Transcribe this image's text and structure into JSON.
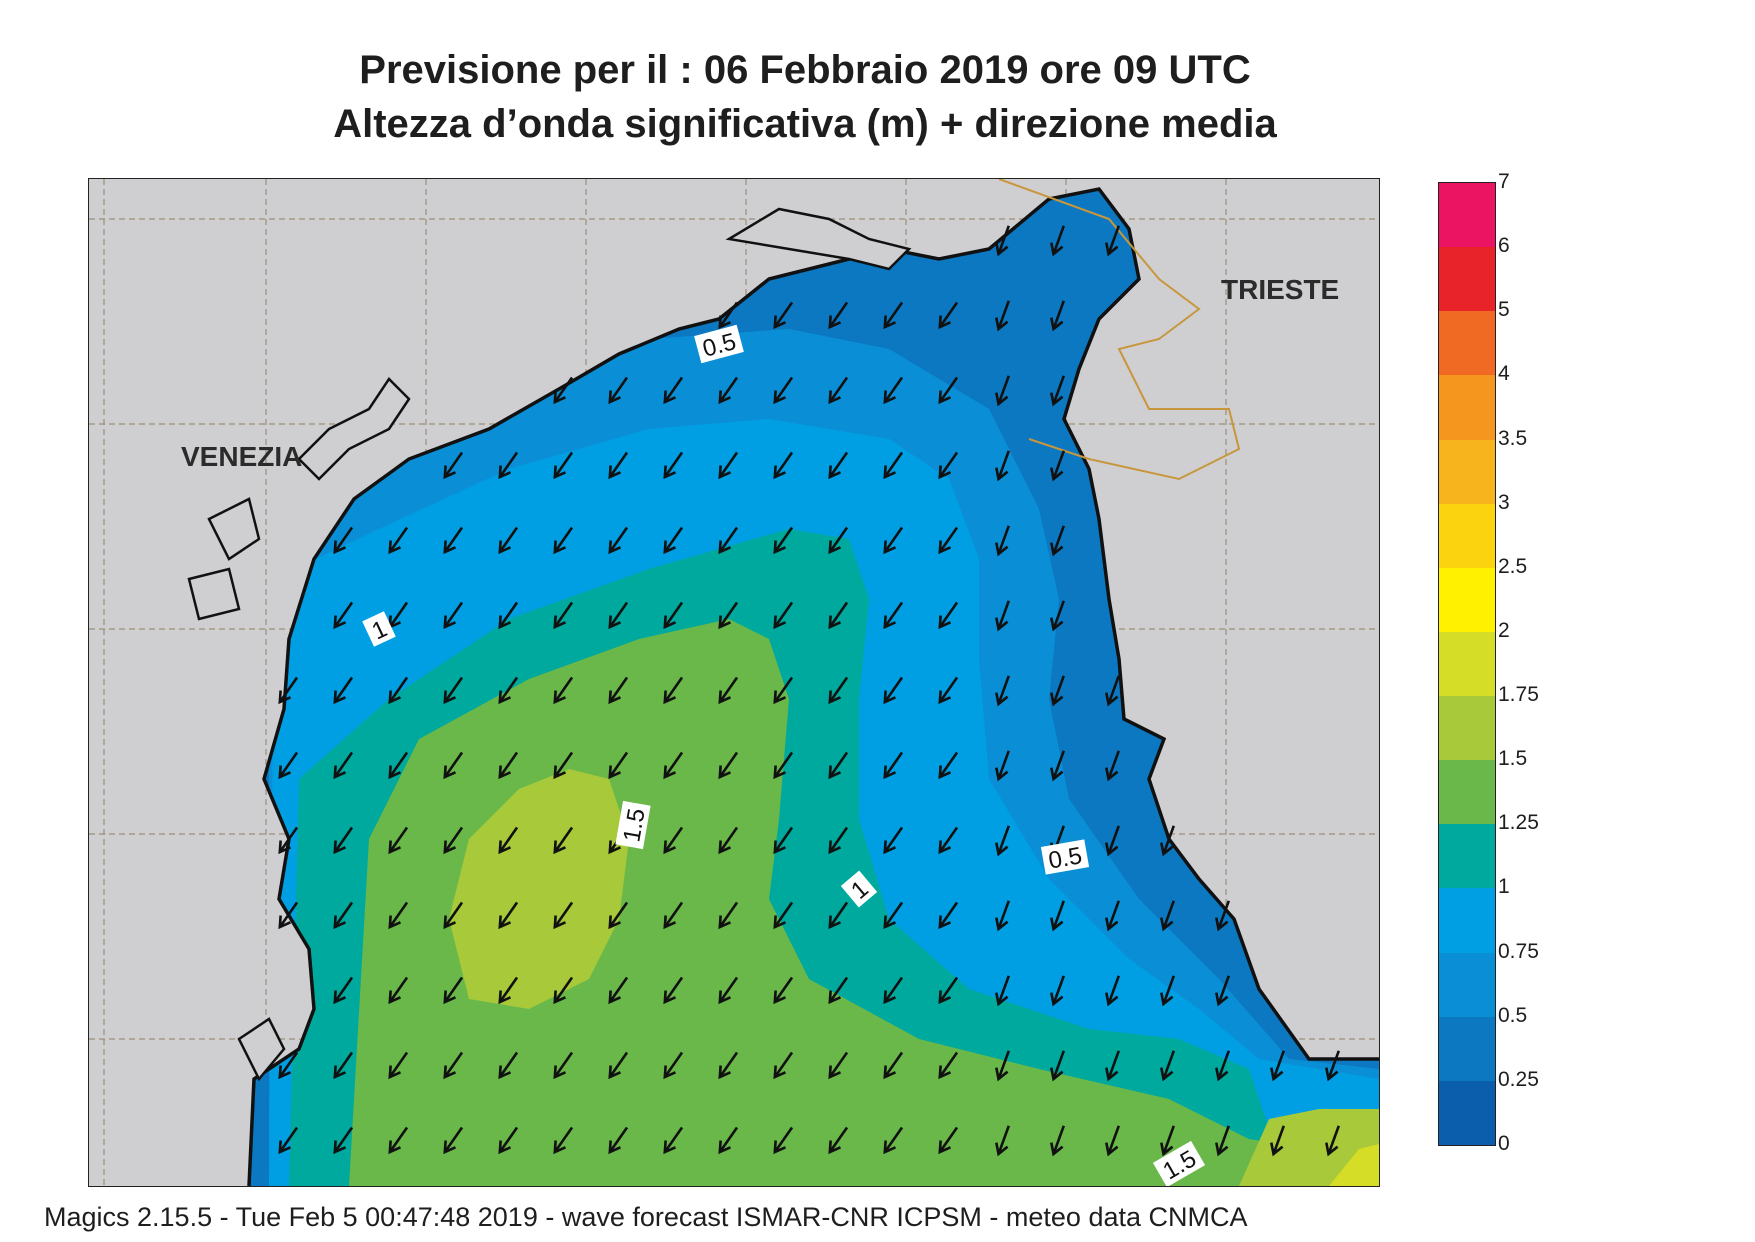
{
  "title_line1": "Previsione per il  :  06  Febbraio 2019   ore 09 UTC",
  "title_line2": "Altezza d’onda significativa (m) + direzione media",
  "cities": {
    "venezia": "VENEZIA",
    "trieste": "TRIESTE"
  },
  "contour_labels": [
    "0.5",
    "1",
    "1.5",
    "1",
    "0.5",
    "1.5"
  ],
  "colorbar": {
    "labels": [
      "7",
      "6",
      "5",
      "4",
      "3.5",
      "3",
      "2.5",
      "2",
      "1.75",
      "1.5",
      "1.25",
      "1",
      "0.75",
      "0.5",
      "0.25",
      "0"
    ],
    "colors": [
      "#eb1463",
      "#e8232a",
      "#f06a23",
      "#f5961e",
      "#f7b41c",
      "#fbd30f",
      "#fff100",
      "#d5dd26",
      "#a7c93a",
      "#6ab84a",
      "#00a99d",
      "#009fe3",
      "#0a8fd6",
      "#0b78c1",
      "#0b5eab"
    ]
  },
  "wave_direction": "south-west",
  "footer": "Magics 2.15.5 - Tue Feb  5 00:47:48 2019 - wave forecast  ISMAR-CNR  ICPSM - meteo data   CNMCA"
}
